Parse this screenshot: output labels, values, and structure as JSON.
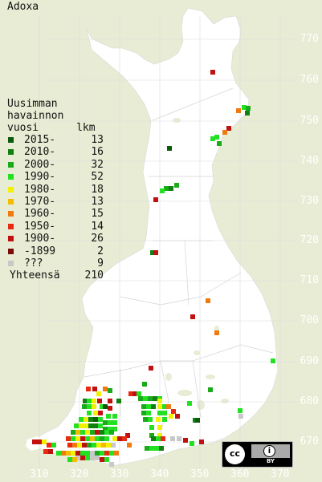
{
  "title": "Adoxa",
  "legend": {
    "header_lines": [
      "Uusimman",
      "havainnon",
      "vuosi      lkm"
    ],
    "rows": [
      {
        "label": "2015-",
        "count": "13",
        "color": "#0c5a0c"
      },
      {
        "label": "2010-",
        "count": "16",
        "color": "#108010"
      },
      {
        "label": "2000-",
        "count": "32",
        "color": "#1aaa1a"
      },
      {
        "label": "1990-",
        "count": "52",
        "color": "#22e022"
      },
      {
        "label": "1980-",
        "count": "18",
        "color": "#f2f200"
      },
      {
        "label": "1970-",
        "count": "13",
        "color": "#f2bc00"
      },
      {
        "label": "1960-",
        "count": "15",
        "color": "#f07a10"
      },
      {
        "label": "1950-",
        "count": "14",
        "color": "#e82a10"
      },
      {
        "label": "1900-",
        "count": "26",
        "color": "#c01010"
      },
      {
        "label": "-1899",
        "count": "2",
        "color": "#7a0c0c"
      },
      {
        "label": "???",
        "count": "9",
        "color": "#c8c8c8"
      }
    ],
    "total_label": "Yhteensä",
    "total_value": "210"
  },
  "y_ticks": [
    "770",
    "760",
    "750",
    "740",
    "730",
    "720",
    "710",
    "700",
    "690",
    "680",
    "670"
  ],
  "x_ticks": [
    "310",
    "320",
    "330",
    "340",
    "350",
    "360",
    "370"
  ],
  "license": {
    "cc": "cc",
    "by": "BY"
  }
}
